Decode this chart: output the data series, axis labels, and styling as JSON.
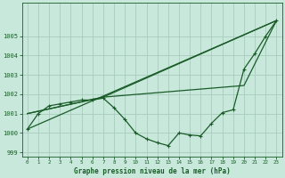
{
  "xlabel": "Graphe pression niveau de la mer (hPa)",
  "xlim": [
    -0.5,
    23.5
  ],
  "ylim": [
    998.8,
    1006.7
  ],
  "yticks": [
    999,
    1000,
    1001,
    1002,
    1003,
    1004,
    1005
  ],
  "xticks": [
    0,
    1,
    2,
    3,
    4,
    5,
    6,
    7,
    8,
    9,
    10,
    11,
    12,
    13,
    14,
    15,
    16,
    17,
    18,
    19,
    20,
    21,
    22,
    23
  ],
  "bg_color": "#c8e8dc",
  "grid_color": "#a8ccbe",
  "line_color": "#1a5c28",
  "line_width": 0.9,
  "marker_size": 2.5,
  "main_series": [
    1000.2,
    1001.0,
    1001.4,
    1001.5,
    1001.6,
    1001.7,
    1001.7,
    1001.8,
    1001.3,
    1000.7,
    1000.0,
    999.7,
    999.5,
    999.35,
    1000.0,
    999.9,
    999.85,
    1000.5,
    1001.05,
    1001.2,
    1003.3,
    1004.1,
    1005.0,
    1005.8
  ],
  "diag_lines": [
    {
      "x": [
        0,
        23
      ],
      "y": [
        1000.2,
        1005.8
      ]
    },
    {
      "x": [
        0,
        7,
        23
      ],
      "y": [
        1001.0,
        1001.85,
        1005.8
      ]
    },
    {
      "x": [
        0,
        7,
        20,
        23
      ],
      "y": [
        1001.0,
        1001.85,
        1002.45,
        1005.8
      ]
    }
  ]
}
